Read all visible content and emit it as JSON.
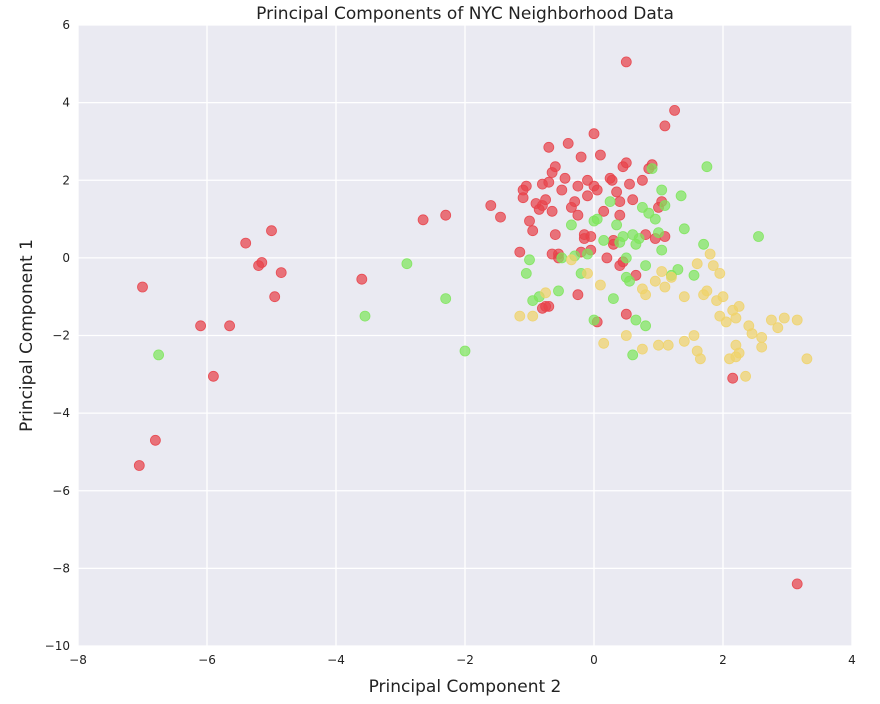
{
  "chart_data": {
    "type": "scatter",
    "title": "Principal Components of NYC Neighborhood Data",
    "xlabel": "Principal Component 2",
    "ylabel": "Principal Component 1",
    "xlim": [
      -8,
      4
    ],
    "ylim": [
      -10,
      6
    ],
    "xticks": [
      -8,
      -6,
      -4,
      -2,
      0,
      2,
      4
    ],
    "yticks": [
      6,
      4,
      2,
      0,
      -2,
      -4,
      -6,
      -8,
      -10
    ],
    "xtick_labels": [
      "−8",
      "−6",
      "−4",
      "−2",
      "0",
      "2",
      "4"
    ],
    "ytick_labels": [
      "6",
      "4",
      "2",
      "0",
      "−2",
      "−4",
      "−6",
      "−8",
      "−10"
    ],
    "grid": true,
    "background": "#eaeaf2",
    "series": [
      {
        "color": "#e8424a",
        "points": [
          [
            -7.0,
            -0.75
          ],
          [
            -7.05,
            -5.35
          ],
          [
            -6.8,
            -4.7
          ],
          [
            -6.1,
            -1.75
          ],
          [
            -5.9,
            -3.05
          ],
          [
            -5.65,
            -1.75
          ],
          [
            -5.4,
            0.38
          ],
          [
            -5.2,
            -0.2
          ],
          [
            -5.15,
            -0.12
          ],
          [
            -5.0,
            0.7
          ],
          [
            -4.95,
            -1.0
          ],
          [
            -4.85,
            -0.38
          ],
          [
            -3.6,
            -0.55
          ],
          [
            -2.65,
            0.98
          ],
          [
            -2.3,
            1.1
          ],
          [
            -1.6,
            1.35
          ],
          [
            -1.45,
            1.05
          ],
          [
            -1.15,
            0.15
          ],
          [
            -1.1,
            1.55
          ],
          [
            -1.1,
            1.75
          ],
          [
            -1.05,
            1.85
          ],
          [
            -1.0,
            0.95
          ],
          [
            -0.95,
            0.7
          ],
          [
            -0.9,
            1.4
          ],
          [
            -0.85,
            1.25
          ],
          [
            -0.8,
            1.35
          ],
          [
            -0.8,
            1.9
          ],
          [
            -0.75,
            1.5
          ],
          [
            -0.7,
            2.85
          ],
          [
            -0.7,
            1.95
          ],
          [
            -0.65,
            2.2
          ],
          [
            -0.65,
            1.2
          ],
          [
            -0.6,
            2.35
          ],
          [
            -0.6,
            0.6
          ],
          [
            -0.55,
            0.0
          ],
          [
            -0.5,
            1.75
          ],
          [
            -0.45,
            2.05
          ],
          [
            -0.4,
            2.95
          ],
          [
            -0.35,
            1.3
          ],
          [
            -0.3,
            1.45
          ],
          [
            -0.25,
            1.85
          ],
          [
            -0.25,
            1.1
          ],
          [
            -0.2,
            2.6
          ],
          [
            -0.2,
            0.15
          ],
          [
            -0.15,
            0.5
          ],
          [
            -0.15,
            0.6
          ],
          [
            -0.1,
            1.6
          ],
          [
            -0.1,
            2.0
          ],
          [
            -0.05,
            0.2
          ],
          [
            -0.05,
            0.55
          ],
          [
            0.0,
            1.85
          ],
          [
            0.0,
            3.2
          ],
          [
            0.05,
            1.75
          ],
          [
            0.1,
            2.65
          ],
          [
            0.15,
            1.2
          ],
          [
            0.2,
            0.0
          ],
          [
            0.25,
            2.05
          ],
          [
            0.28,
            2.0
          ],
          [
            0.3,
            0.35
          ],
          [
            0.35,
            1.7
          ],
          [
            0.4,
            1.45
          ],
          [
            0.4,
            1.1
          ],
          [
            0.45,
            2.35
          ],
          [
            0.5,
            2.45
          ],
          [
            0.5,
            5.05
          ],
          [
            0.55,
            1.9
          ],
          [
            0.6,
            1.5
          ],
          [
            0.65,
            -0.45
          ],
          [
            0.75,
            2.0
          ],
          [
            0.8,
            0.6
          ],
          [
            0.85,
            2.3
          ],
          [
            0.9,
            2.4
          ],
          [
            0.95,
            0.5
          ],
          [
            1.0,
            1.3
          ],
          [
            1.05,
            1.45
          ],
          [
            1.1,
            0.55
          ],
          [
            1.1,
            3.4
          ],
          [
            1.25,
            3.8
          ],
          [
            0.5,
            -1.45
          ],
          [
            0.05,
            -1.65
          ],
          [
            -0.25,
            -0.95
          ],
          [
            -0.7,
            -1.25
          ],
          [
            -0.75,
            -1.25
          ],
          [
            -0.65,
            0.1
          ],
          [
            -0.55,
            0.1
          ],
          [
            2.15,
            -3.1
          ],
          [
            3.15,
            -8.4
          ],
          [
            -0.8,
            -1.3
          ],
          [
            0.4,
            -0.2
          ],
          [
            0.45,
            -0.1
          ],
          [
            0.3,
            0.45
          ]
        ]
      },
      {
        "color": "#7ee65c",
        "points": [
          [
            -6.75,
            -2.5
          ],
          [
            -3.55,
            -1.5
          ],
          [
            -2.9,
            -0.15
          ],
          [
            -2.3,
            -1.05
          ],
          [
            -2.0,
            -2.4
          ],
          [
            -1.05,
            -0.4
          ],
          [
            -1.0,
            -0.05
          ],
          [
            -0.95,
            -1.1
          ],
          [
            -0.85,
            -1.0
          ],
          [
            -0.55,
            -0.85
          ],
          [
            -0.5,
            0.0
          ],
          [
            -0.35,
            0.85
          ],
          [
            -0.3,
            0.05
          ],
          [
            -0.2,
            -0.4
          ],
          [
            -0.1,
            0.1
          ],
          [
            0.0,
            0.95
          ],
          [
            0.05,
            1.0
          ],
          [
            0.15,
            0.45
          ],
          [
            0.25,
            1.45
          ],
          [
            0.35,
            0.85
          ],
          [
            0.4,
            0.4
          ],
          [
            0.45,
            0.55
          ],
          [
            0.5,
            0.0
          ],
          [
            0.5,
            -0.5
          ],
          [
            0.55,
            -0.6
          ],
          [
            0.6,
            0.6
          ],
          [
            0.65,
            0.35
          ],
          [
            0.7,
            0.5
          ],
          [
            0.75,
            1.3
          ],
          [
            0.8,
            -1.75
          ],
          [
            0.85,
            1.15
          ],
          [
            0.9,
            2.3
          ],
          [
            0.95,
            1.0
          ],
          [
            1.0,
            0.65
          ],
          [
            1.05,
            0.2
          ],
          [
            1.05,
            1.75
          ],
          [
            1.1,
            1.35
          ],
          [
            1.2,
            -0.45
          ],
          [
            1.3,
            -0.3
          ],
          [
            1.35,
            1.6
          ],
          [
            1.4,
            0.75
          ],
          [
            1.55,
            -0.45
          ],
          [
            1.7,
            0.35
          ],
          [
            1.75,
            2.35
          ],
          [
            2.55,
            0.55
          ],
          [
            0.3,
            -1.05
          ],
          [
            0.0,
            -1.6
          ],
          [
            0.6,
            -2.5
          ],
          [
            0.65,
            -1.6
          ],
          [
            0.8,
            -0.2
          ]
        ]
      },
      {
        "color": "#f0d36a",
        "points": [
          [
            -1.15,
            -1.5
          ],
          [
            -0.95,
            -1.5
          ],
          [
            -0.75,
            -0.9
          ],
          [
            -0.35,
            -0.05
          ],
          [
            -0.1,
            -0.4
          ],
          [
            0.1,
            -0.7
          ],
          [
            0.15,
            -2.2
          ],
          [
            0.5,
            -2.0
          ],
          [
            0.75,
            -2.35
          ],
          [
            0.75,
            -0.8
          ],
          [
            0.8,
            -0.95
          ],
          [
            0.95,
            -0.6
          ],
          [
            1.0,
            -2.25
          ],
          [
            1.05,
            -0.35
          ],
          [
            1.1,
            -0.75
          ],
          [
            1.15,
            -2.25
          ],
          [
            1.2,
            -0.5
          ],
          [
            1.4,
            -1.0
          ],
          [
            1.4,
            -2.15
          ],
          [
            1.55,
            -2.0
          ],
          [
            1.6,
            -0.15
          ],
          [
            1.6,
            -2.4
          ],
          [
            1.65,
            -2.6
          ],
          [
            1.7,
            -0.95
          ],
          [
            1.75,
            -0.85
          ],
          [
            1.8,
            0.1
          ],
          [
            1.85,
            -0.2
          ],
          [
            1.9,
            -1.1
          ],
          [
            1.95,
            -1.5
          ],
          [
            1.95,
            -0.4
          ],
          [
            2.0,
            -1.0
          ],
          [
            2.05,
            -1.65
          ],
          [
            2.1,
            -2.6
          ],
          [
            2.15,
            -1.35
          ],
          [
            2.2,
            -2.25
          ],
          [
            2.2,
            -1.55
          ],
          [
            2.25,
            -2.45
          ],
          [
            2.25,
            -1.25
          ],
          [
            2.35,
            -3.05
          ],
          [
            2.4,
            -1.75
          ],
          [
            2.45,
            -1.95
          ],
          [
            2.6,
            -2.05
          ],
          [
            2.6,
            -2.3
          ],
          [
            2.75,
            -1.6
          ],
          [
            2.85,
            -1.8
          ],
          [
            2.95,
            -1.55
          ],
          [
            3.15,
            -1.6
          ],
          [
            3.3,
            -2.6
          ],
          [
            2.2,
            -2.55
          ]
        ]
      }
    ]
  }
}
